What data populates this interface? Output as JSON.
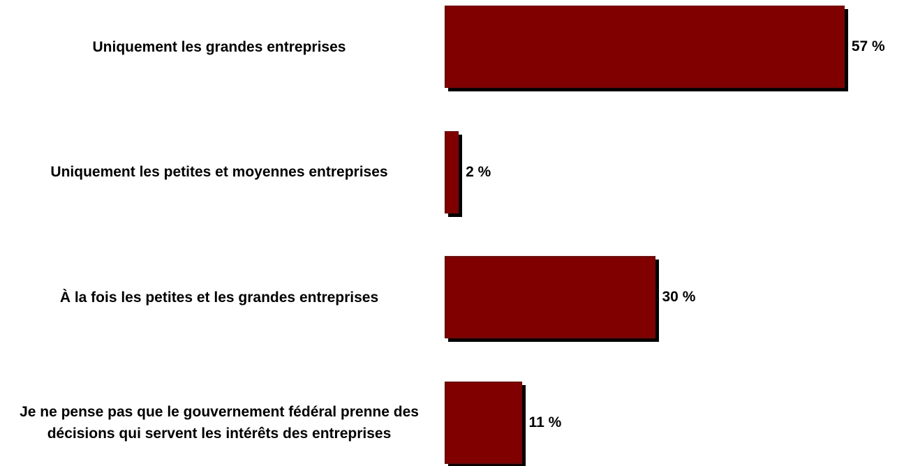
{
  "chart_data": {
    "type": "bar",
    "orientation": "horizontal",
    "categories": [
      "Uniquement les grandes entreprises",
      "Uniquement les petites et moyennes entreprises",
      "À la fois les petites et les grandes entreprises",
      "Je ne pense pas que le gouvernement fédéral prenne des décisions qui servent les intérêts des entreprises"
    ],
    "values": [
      57,
      2,
      30,
      11
    ],
    "value_labels": [
      "57 %",
      "2 %",
      "30 %",
      "11 %"
    ],
    "color": "#800000"
  }
}
